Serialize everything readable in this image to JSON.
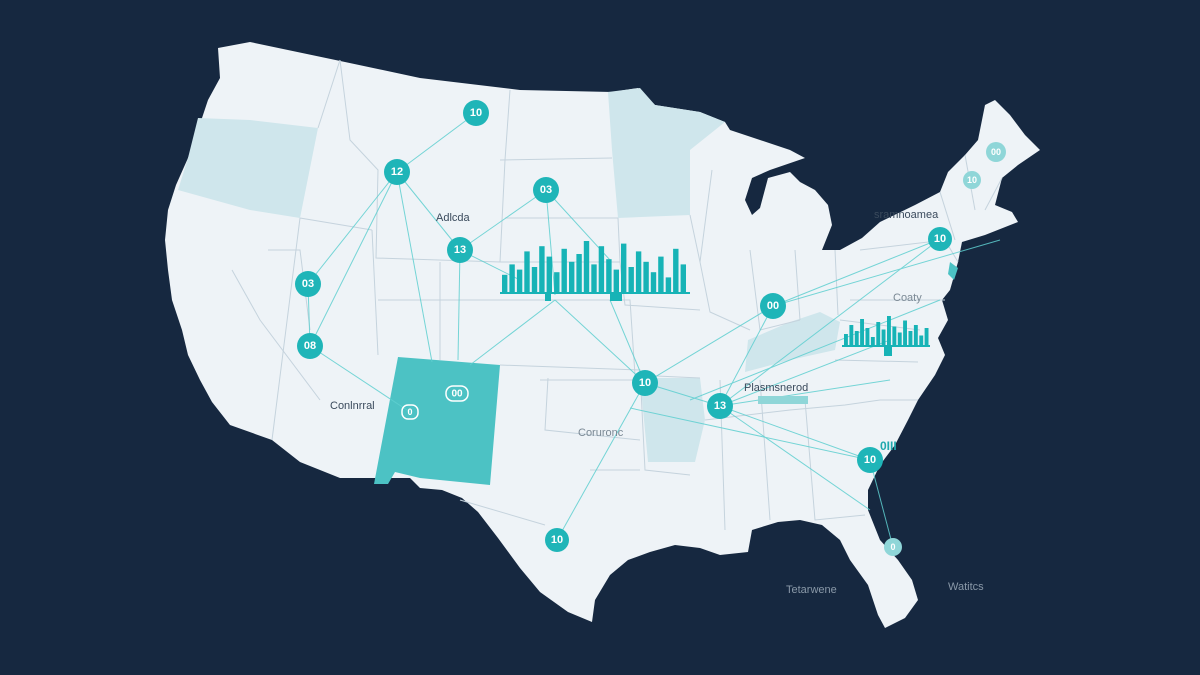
{
  "colors": {
    "background": "#162840",
    "land": "#eef3f7",
    "state_border": "#c5d3dd",
    "highlight_light": "#cfe6ec",
    "highlight_strong": "#4cc2c4",
    "node": "#1fb5b8",
    "connection": "#5fcfd0",
    "bars": "#17b3b6"
  },
  "labels": {
    "north_label": "Adlcda",
    "west_label": "Conlnrral",
    "south_label": "Coruronc",
    "east_label": "Plasmsnerod",
    "northeast_label": "sramnoamea",
    "mid_atlantic_label": "Coaty",
    "offshore_left": "Tetarwene",
    "offshore_right": "Watitcs",
    "southeast_badge": "0III",
    "new_mexico_badge_1": "00",
    "new_mexico_badge_2": "0"
  },
  "nodes": [
    {
      "id": "n1",
      "label": "10"
    },
    {
      "id": "n2",
      "label": "12"
    },
    {
      "id": "n3",
      "label": "03"
    },
    {
      "id": "n4",
      "label": "13"
    },
    {
      "id": "n5",
      "label": "03"
    },
    {
      "id": "n6",
      "label": "08"
    },
    {
      "id": "n7",
      "label": "00"
    },
    {
      "id": "n8",
      "label": "10"
    },
    {
      "id": "n9",
      "label": "13"
    },
    {
      "id": "n10",
      "label": "10"
    },
    {
      "id": "n11",
      "label": "10"
    },
    {
      "id": "n12",
      "label": "10"
    },
    {
      "id": "n13",
      "label": "00"
    },
    {
      "id": "n14",
      "label": "10"
    },
    {
      "id": "n15",
      "label": "0"
    }
  ],
  "bar_chart_center": {
    "values": [
      0.35,
      0.55,
      0.45,
      0.8,
      0.5,
      0.9,
      0.7,
      0.4,
      0.85,
      0.6,
      0.75,
      1.0,
      0.55,
      0.9,
      0.65,
      0.45,
      0.95,
      0.5,
      0.8,
      0.6,
      0.4,
      0.7,
      0.3,
      0.85,
      0.55
    ]
  },
  "bar_chart_east": {
    "values": [
      0.4,
      0.7,
      0.5,
      0.9,
      0.6,
      0.3,
      0.8,
      0.55,
      1.0,
      0.65,
      0.45,
      0.85,
      0.5,
      0.7,
      0.35,
      0.6
    ]
  }
}
